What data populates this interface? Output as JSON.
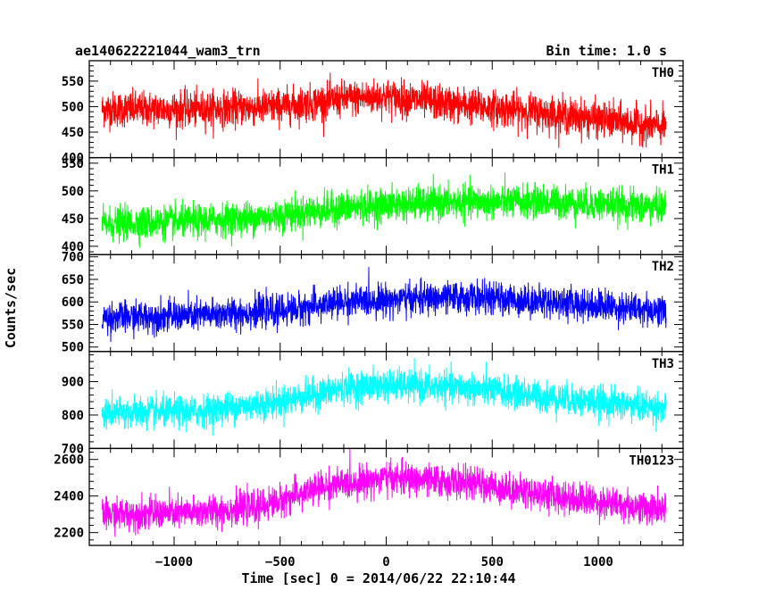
{
  "chart_data": {
    "type": "line",
    "title": "ae140622221044_wam3_trn",
    "bin_time": "Bin time: 1.0 s",
    "xlabel": "Time [sec] 0 = 2014/06/22 22:10:44",
    "ylabel": "Counts/sec",
    "xlim": [
      -1400,
      1400
    ],
    "x_ticks": [
      -1000,
      -500,
      0,
      500,
      1000
    ],
    "x_tick_labels": [
      "−1000",
      "−500",
      "0",
      "500",
      "1000"
    ],
    "data_x_range": [
      -1340,
      1320
    ],
    "panels": [
      {
        "name": "TH0",
        "color": "#ff0000",
        "ylim": [
          400,
          590
        ],
        "y_ticks": [
          400,
          450,
          500,
          550
        ],
        "y_tick_labels": [
          "400",
          "450",
          "500",
          "550"
        ],
        "trend": [
          [
            -1340,
            495
          ],
          [
            -900,
            495
          ],
          [
            -500,
            500
          ],
          [
            -200,
            515
          ],
          [
            0,
            520
          ],
          [
            300,
            505
          ],
          [
            700,
            490
          ],
          [
            1000,
            475
          ],
          [
            1320,
            460
          ]
        ],
        "noise_amplitude": 28
      },
      {
        "name": "TH1",
        "color": "#00ff00",
        "ylim": [
          385,
          560
        ],
        "y_ticks": [
          400,
          450,
          500,
          550
        ],
        "y_tick_labels": [
          "400",
          "450",
          "500",
          "550"
        ],
        "trend": [
          [
            -1340,
            440
          ],
          [
            -900,
            445
          ],
          [
            -500,
            455
          ],
          [
            -200,
            470
          ],
          [
            0,
            475
          ],
          [
            400,
            480
          ],
          [
            800,
            480
          ],
          [
            1320,
            470
          ]
        ],
        "noise_amplitude": 24
      },
      {
        "name": "TH2",
        "color": "#0000ff",
        "ylim": [
          490,
          705
        ],
        "y_ticks": [
          500,
          550,
          600,
          650,
          700
        ],
        "y_tick_labels": [
          "500",
          "550",
          "600",
          "650",
          "700"
        ],
        "trend": [
          [
            -1340,
            565
          ],
          [
            -900,
            570
          ],
          [
            -500,
            580
          ],
          [
            -200,
            600
          ],
          [
            0,
            605
          ],
          [
            400,
            610
          ],
          [
            800,
            600
          ],
          [
            1320,
            580
          ]
        ],
        "noise_amplitude": 28
      },
      {
        "name": "TH3",
        "color": "#00ffff",
        "ylim": [
          700,
          990
        ],
        "y_ticks": [
          700,
          800,
          900
        ],
        "y_tick_labels": [
          "700",
          "800",
          "900"
        ],
        "trend": [
          [
            -1340,
            805
          ],
          [
            -900,
            810
          ],
          [
            -500,
            840
          ],
          [
            -200,
            880
          ],
          [
            0,
            890
          ],
          [
            400,
            880
          ],
          [
            800,
            850
          ],
          [
            1320,
            820
          ]
        ],
        "noise_amplitude": 38
      },
      {
        "name": "TH0123",
        "color": "#ff00ff",
        "ylim": [
          2130,
          2660
        ],
        "y_ticks": [
          2200,
          2400,
          2600
        ],
        "y_tick_labels": [
          "2200",
          "2400",
          "2600"
        ],
        "trend": [
          [
            -1340,
            2300
          ],
          [
            -900,
            2310
          ],
          [
            -600,
            2340
          ],
          [
            -300,
            2450
          ],
          [
            0,
            2500
          ],
          [
            400,
            2470
          ],
          [
            800,
            2400
          ],
          [
            1320,
            2320
          ]
        ],
        "noise_amplitude": 70
      }
    ]
  }
}
